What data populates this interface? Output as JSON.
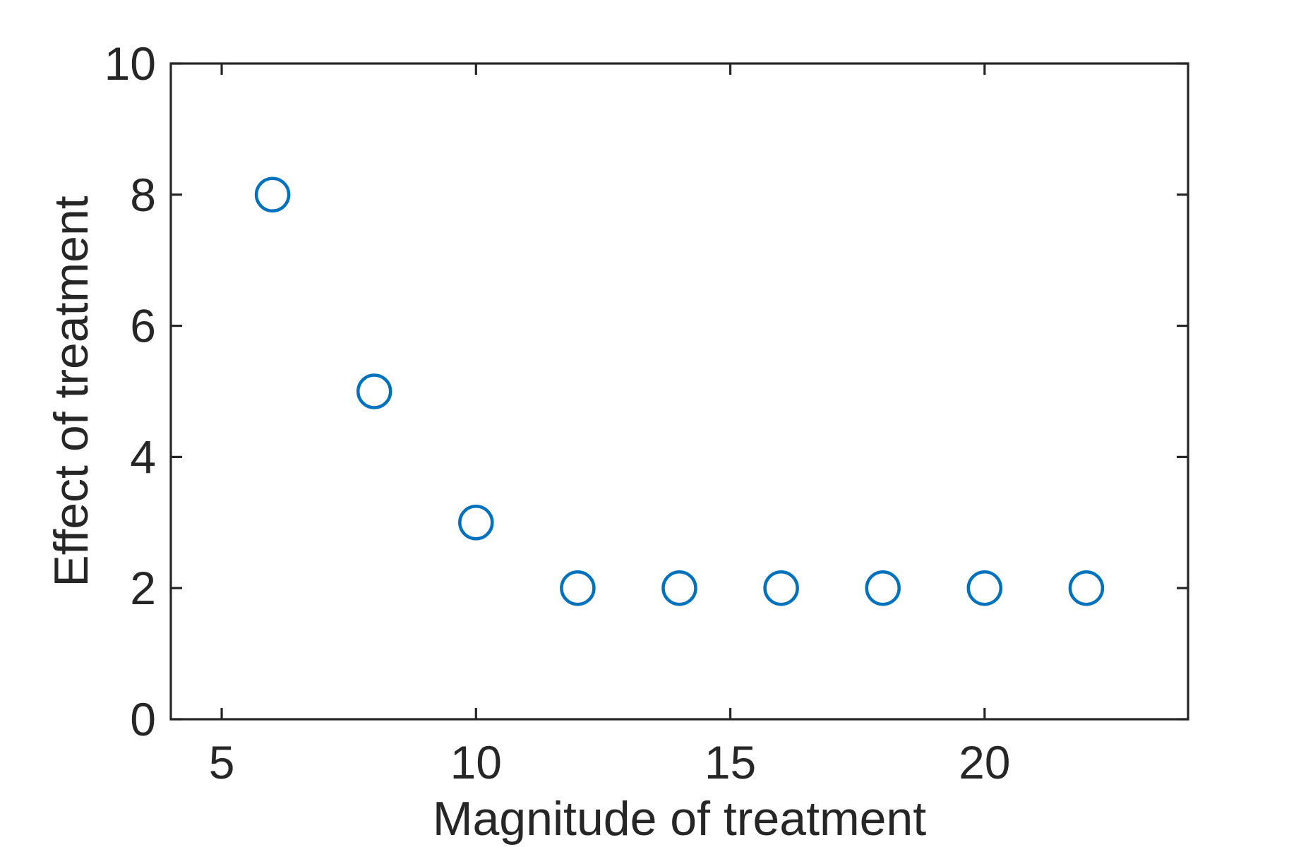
{
  "chart_data": {
    "type": "scatter",
    "title": "",
    "xlabel": "Magnitude of treatment",
    "ylabel": "Effect of treatment",
    "x": [
      6,
      8,
      10,
      12,
      14,
      16,
      18,
      20,
      22
    ],
    "y": [
      8,
      5,
      3,
      2,
      2,
      2,
      2,
      2,
      2
    ],
    "xlim": [
      4,
      24
    ],
    "ylim": [
      0,
      10
    ],
    "xticks": [
      5,
      10,
      15,
      20
    ],
    "yticks": [
      0,
      2,
      4,
      6,
      8,
      10
    ],
    "xtick_labels": [
      "5",
      "10",
      "15",
      "20"
    ],
    "ytick_labels": [
      "0",
      "2",
      "4",
      "6",
      "8",
      "10"
    ],
    "grid": false,
    "legend": false,
    "marker_shape": "open-circle",
    "marker_color": "#0072BD",
    "axis_color": "#262626",
    "background_color": "#ffffff"
  }
}
